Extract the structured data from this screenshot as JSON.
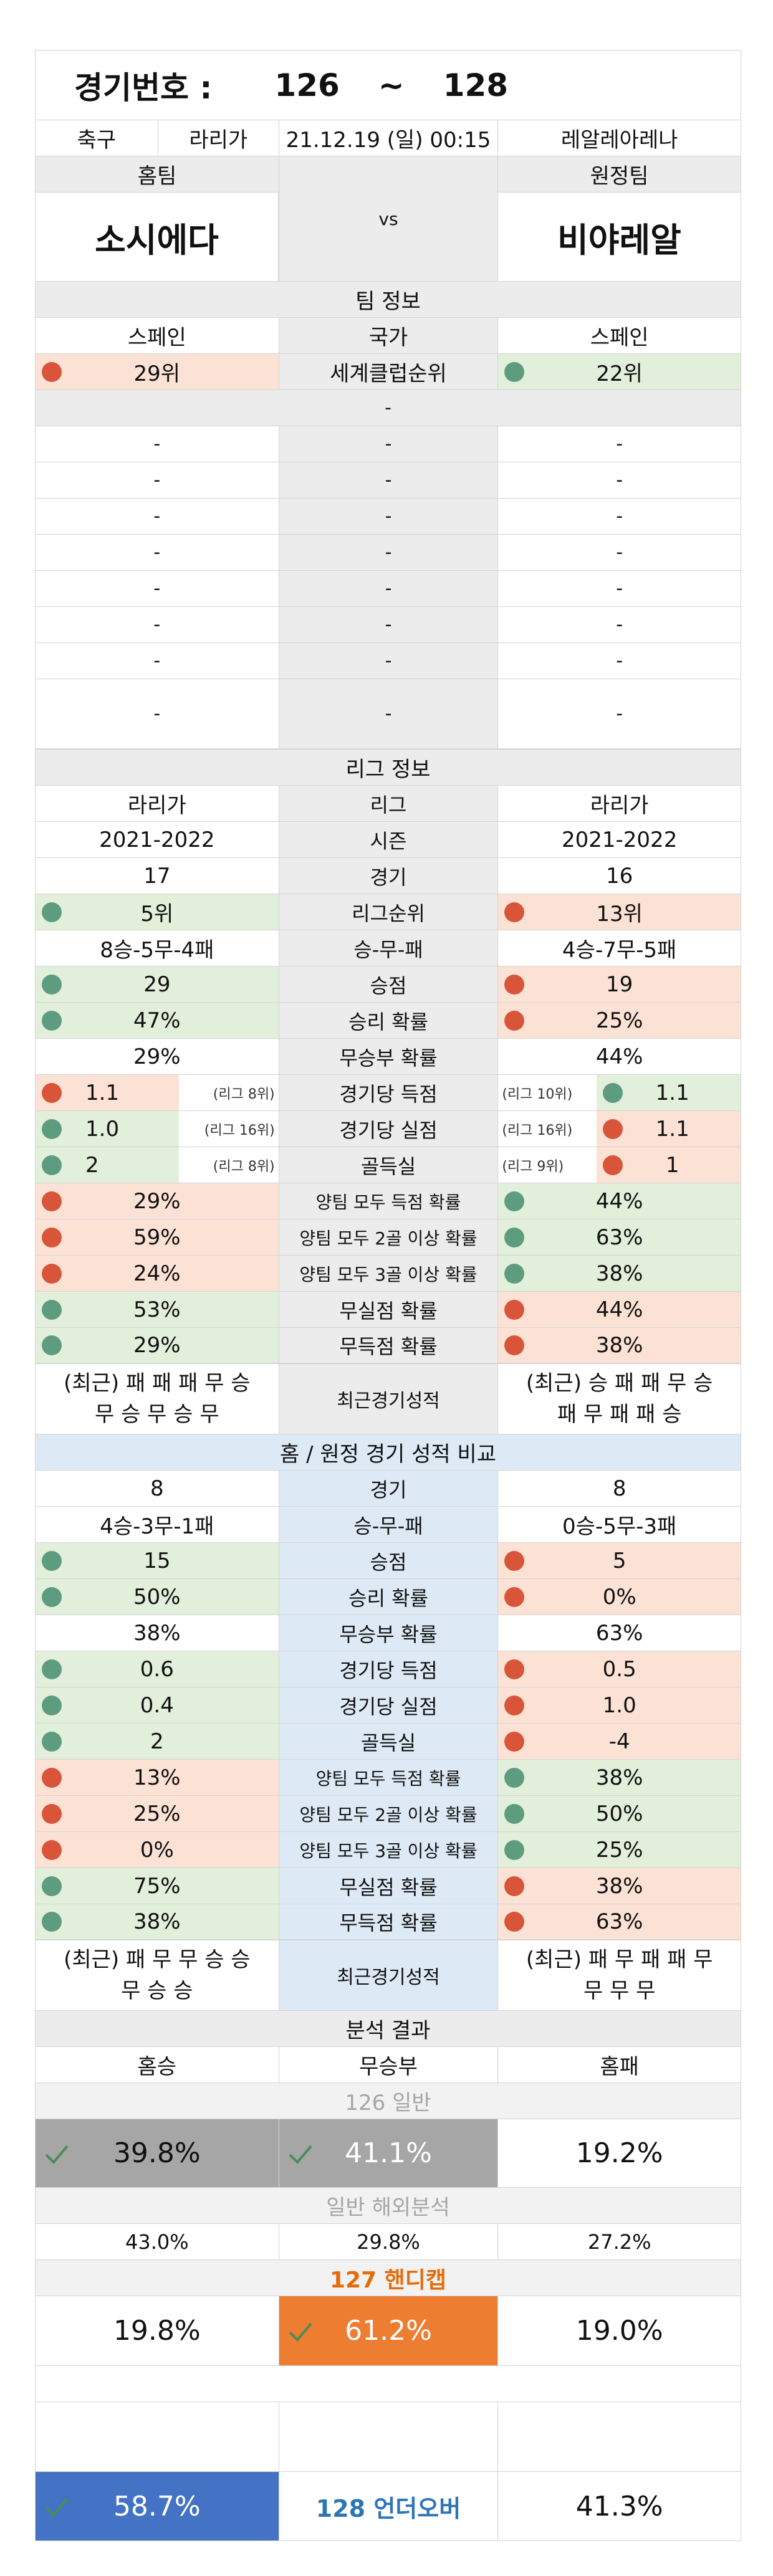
{
  "header": {
    "label": "경기번호 :",
    "range_start": "126",
    "sep": "~",
    "range_end": "128"
  },
  "match": {
    "sport": "축구",
    "league": "라리가",
    "datetime": "21.12.19 (일) 00:15",
    "venue": "레알레아레나",
    "home_label": "홈팀",
    "away_label": "원정팀",
    "home_team": "소시에다",
    "vs": "vs",
    "away_team": "비야레알"
  },
  "team_info": {
    "title": "팀 정보",
    "country_label": "국가",
    "home_country": "스페인",
    "away_country": "스페인",
    "rank_label": "세계클럽순위",
    "home_rank": "29위",
    "away_rank": "22위",
    "blank_section": "-",
    "dash": "-"
  },
  "league_info": {
    "title": "리그 정보",
    "rows": [
      {
        "label": "리그",
        "home": "라리가",
        "away": "라리가"
      },
      {
        "label": "시즌",
        "home": "2021-2022",
        "away": "2021-2022"
      },
      {
        "label": "경기",
        "home": "17",
        "away": "16"
      },
      {
        "label": "리그순위",
        "home": "5위",
        "away": "13위",
        "hc": "g",
        "ac": "r"
      },
      {
        "label": "승-무-패",
        "home": "8승-5무-4패",
        "away": "4승-7무-5패"
      },
      {
        "label": "승점",
        "home": "29",
        "away": "19",
        "hc": "g",
        "ac": "r"
      },
      {
        "label": "승리 확률",
        "home": "47%",
        "away": "25%",
        "hc": "g",
        "ac": "r"
      },
      {
        "label": "무승부 확률",
        "home": "29%",
        "away": "44%"
      },
      {
        "label": "경기당 득점",
        "home": "1.1",
        "away": "1.1",
        "hc": "r",
        "ac": "g",
        "hn": "(리그 8위)",
        "an": "(리그 10위)"
      },
      {
        "label": "경기당 실점",
        "home": "1.0",
        "away": "1.1",
        "hc": "g",
        "ac": "r",
        "hn": "(리그 16위)",
        "an": "(리그 16위)"
      },
      {
        "label": "골득실",
        "home": "2",
        "away": "1",
        "hc": "g",
        "ac": "r",
        "hn": "(리그 8위)",
        "an": "(리그 9위)"
      },
      {
        "label": "양팀 모두 득점 확률",
        "home": "29%",
        "away": "44%",
        "hc": "r",
        "ac": "g"
      },
      {
        "label": "양팀 모두 2골 이상 확률",
        "home": "59%",
        "away": "63%",
        "hc": "r",
        "ac": "g"
      },
      {
        "label": "양팀 모두 3골 이상 확률",
        "home": "24%",
        "away": "38%",
        "hc": "r",
        "ac": "g"
      },
      {
        "label": "무실점 확률",
        "home": "53%",
        "away": "44%",
        "hc": "g",
        "ac": "r"
      },
      {
        "label": "무득점 확률",
        "home": "29%",
        "away": "38%",
        "hc": "g",
        "ac": "r"
      }
    ],
    "recent_label": "최근경기성적",
    "home_recent_1": "(최근) 패 패 패 무 승",
    "home_recent_2": "무 승 무 승 무",
    "away_recent_1": "(최근) 승 패 패 무 승",
    "away_recent_2": "패 무 패 패 승"
  },
  "homeaway": {
    "title": "홈 / 원정 경기 성적 비교",
    "rows": [
      {
        "label": "경기",
        "home": "8",
        "away": "8"
      },
      {
        "label": "승-무-패",
        "home": "4승-3무-1패",
        "away": "0승-5무-3패"
      },
      {
        "label": "승점",
        "home": "15",
        "away": "5",
        "hc": "g",
        "ac": "r"
      },
      {
        "label": "승리 확률",
        "home": "50%",
        "away": "0%",
        "hc": "g",
        "ac": "r"
      },
      {
        "label": "무승부 확률",
        "home": "38%",
        "away": "63%"
      },
      {
        "label": "경기당 득점",
        "home": "0.6",
        "away": "0.5",
        "hc": "g",
        "ac": "r"
      },
      {
        "label": "경기당 실점",
        "home": "0.4",
        "away": "1.0",
        "hc": "g",
        "ac": "r"
      },
      {
        "label": "골득실",
        "home": "2",
        "away": "-4",
        "hc": "g",
        "ac": "r"
      },
      {
        "label": "양팀 모두 득점 확률",
        "home": "13%",
        "away": "38%",
        "hc": "r",
        "ac": "g"
      },
      {
        "label": "양팀 모두 2골 이상 확률",
        "home": "25%",
        "away": "50%",
        "hc": "r",
        "ac": "g"
      },
      {
        "label": "양팀 모두 3골 이상 확률",
        "home": "0%",
        "away": "25%",
        "hc": "r",
        "ac": "g"
      },
      {
        "label": "무실점 확률",
        "home": "75%",
        "away": "38%",
        "hc": "g",
        "ac": "r"
      },
      {
        "label": "무득점 확률",
        "home": "38%",
        "away": "63%",
        "hc": "g",
        "ac": "r"
      }
    ],
    "recent_label": "최근경기성적",
    "home_recent_1": "(최근) 패 무 무 승 승",
    "home_recent_2": "무 승 승",
    "away_recent_1": "(최근) 패 무 패 패 무",
    "away_recent_2": "무 무 무"
  },
  "analysis": {
    "title": "분석 결과",
    "col_home": "홈승",
    "col_draw": "무승부",
    "col_away": "홈패",
    "general_title": "126 일반",
    "general_home": "39.8%",
    "general_draw": "41.1%",
    "general_away": "19.2%",
    "overseas_title": "일반 해외분석",
    "overseas_home": "43.0%",
    "overseas_draw": "29.8%",
    "overseas_away": "27.2%",
    "handicap_title": "127 핸디캡",
    "handicap_home": "19.8%",
    "handicap_draw": "61.2%",
    "handicap_away": "19.0%",
    "underover_under": "58.7%",
    "underover_title": "128 언더오버",
    "underover_over": "41.3%"
  },
  "colors": {
    "green": "#e2efda",
    "red": "#fbe2d5",
    "gray": "#ececec",
    "blue": "#ddeaf6",
    "dark_gray": "#a6a6a6",
    "orange": "#ed7d31",
    "royal_blue": "#4472c4",
    "handicap_text": "#e46c0a",
    "underover_text": "#2e75b6",
    "check_green": "#4a8c5a"
  }
}
